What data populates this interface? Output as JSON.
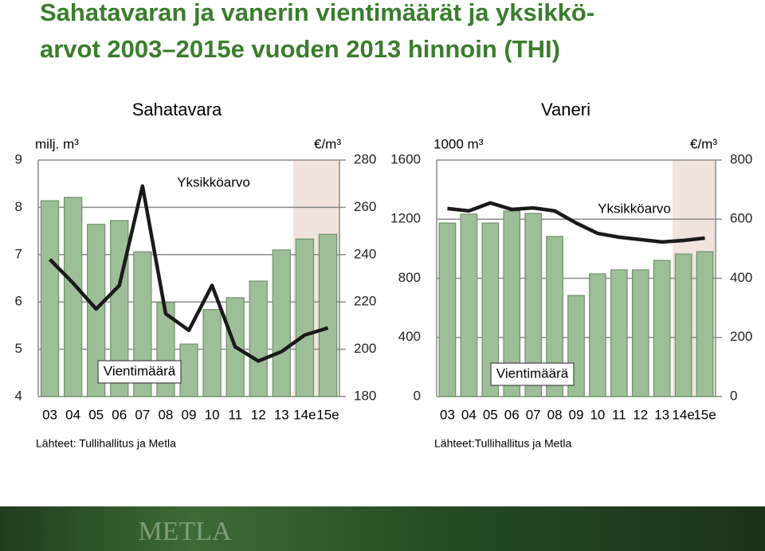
{
  "title": [
    "Sahatavaran ja vanerin vientimäärät ja yksikkö-",
    "arvot 2003–2015e vuoden 2013 hinnoin (THI)"
  ],
  "chart_data": [
    {
      "type": "bar",
      "title": "Sahatavara",
      "categories": [
        "03",
        "04",
        "05",
        "06",
        "07",
        "08",
        "09",
        "10",
        "11",
        "12",
        "13",
        "14e",
        "15e"
      ],
      "series": [
        {
          "name": "Vientimäärä",
          "type": "bar",
          "color": "#9dbf97",
          "values": [
            8.14,
            8.21,
            7.64,
            7.72,
            7.06,
            5.99,
            5.11,
            5.84,
            6.09,
            6.44,
            7.1,
            7.33,
            7.43
          ]
        },
        {
          "name": "Yksikköarvo",
          "type": "line",
          "axis": "y2",
          "color": "#1a1a1a",
          "values": [
            238,
            228,
            217,
            227,
            269,
            215,
            208,
            227,
            201,
            195,
            199,
            206,
            209
          ]
        }
      ],
      "y_label": "milj. m³",
      "y2_label": "€/m³",
      "ylim": [
        4,
        9
      ],
      "yticks": [
        4,
        5,
        6,
        7,
        8,
        9
      ],
      "y2lim": [
        180,
        280
      ],
      "y2ticks": [
        180,
        200,
        220,
        240,
        260,
        280
      ],
      "grid": true,
      "shade": {
        "indices": [
          11,
          12
        ],
        "color": "#f1e4dc"
      },
      "source": "Lähteet: Tullihallitus ja Metla"
    },
    {
      "type": "bar",
      "title": "Vaneri",
      "categories": [
        "03",
        "04",
        "05",
        "06",
        "07",
        "08",
        "09",
        "10",
        "11",
        "12",
        "13",
        "14e",
        "15e"
      ],
      "series": [
        {
          "name": "Vientimäärä",
          "type": "bar",
          "color": "#9dbf97",
          "values": [
            1174,
            1234,
            1174,
            1255,
            1239,
            1083,
            684,
            830,
            857,
            857,
            921,
            964,
            980
          ]
        },
        {
          "name": "Yksikköarvo",
          "type": "line",
          "axis": "y2",
          "color": "#1a1a1a",
          "values": [
            636,
            628,
            655,
            633,
            638,
            628,
            587,
            552,
            539,
            531,
            523,
            528,
            536
          ]
        }
      ],
      "y_label": "1000 m³",
      "y2_label": "€/m³",
      "ylim": [
        0,
        1600
      ],
      "yticks": [
        0,
        400,
        800,
        1200,
        1600
      ],
      "y2lim": [
        0,
        800
      ],
      "y2ticks": [
        0,
        200,
        400,
        600,
        800
      ],
      "grid": true,
      "shade": {
        "indices": [
          11,
          12
        ],
        "color": "#f1e4dc"
      },
      "source": "Lähteet:Tullihallitus ja Metla"
    }
  ],
  "footer": {
    "logo": "METLA"
  }
}
